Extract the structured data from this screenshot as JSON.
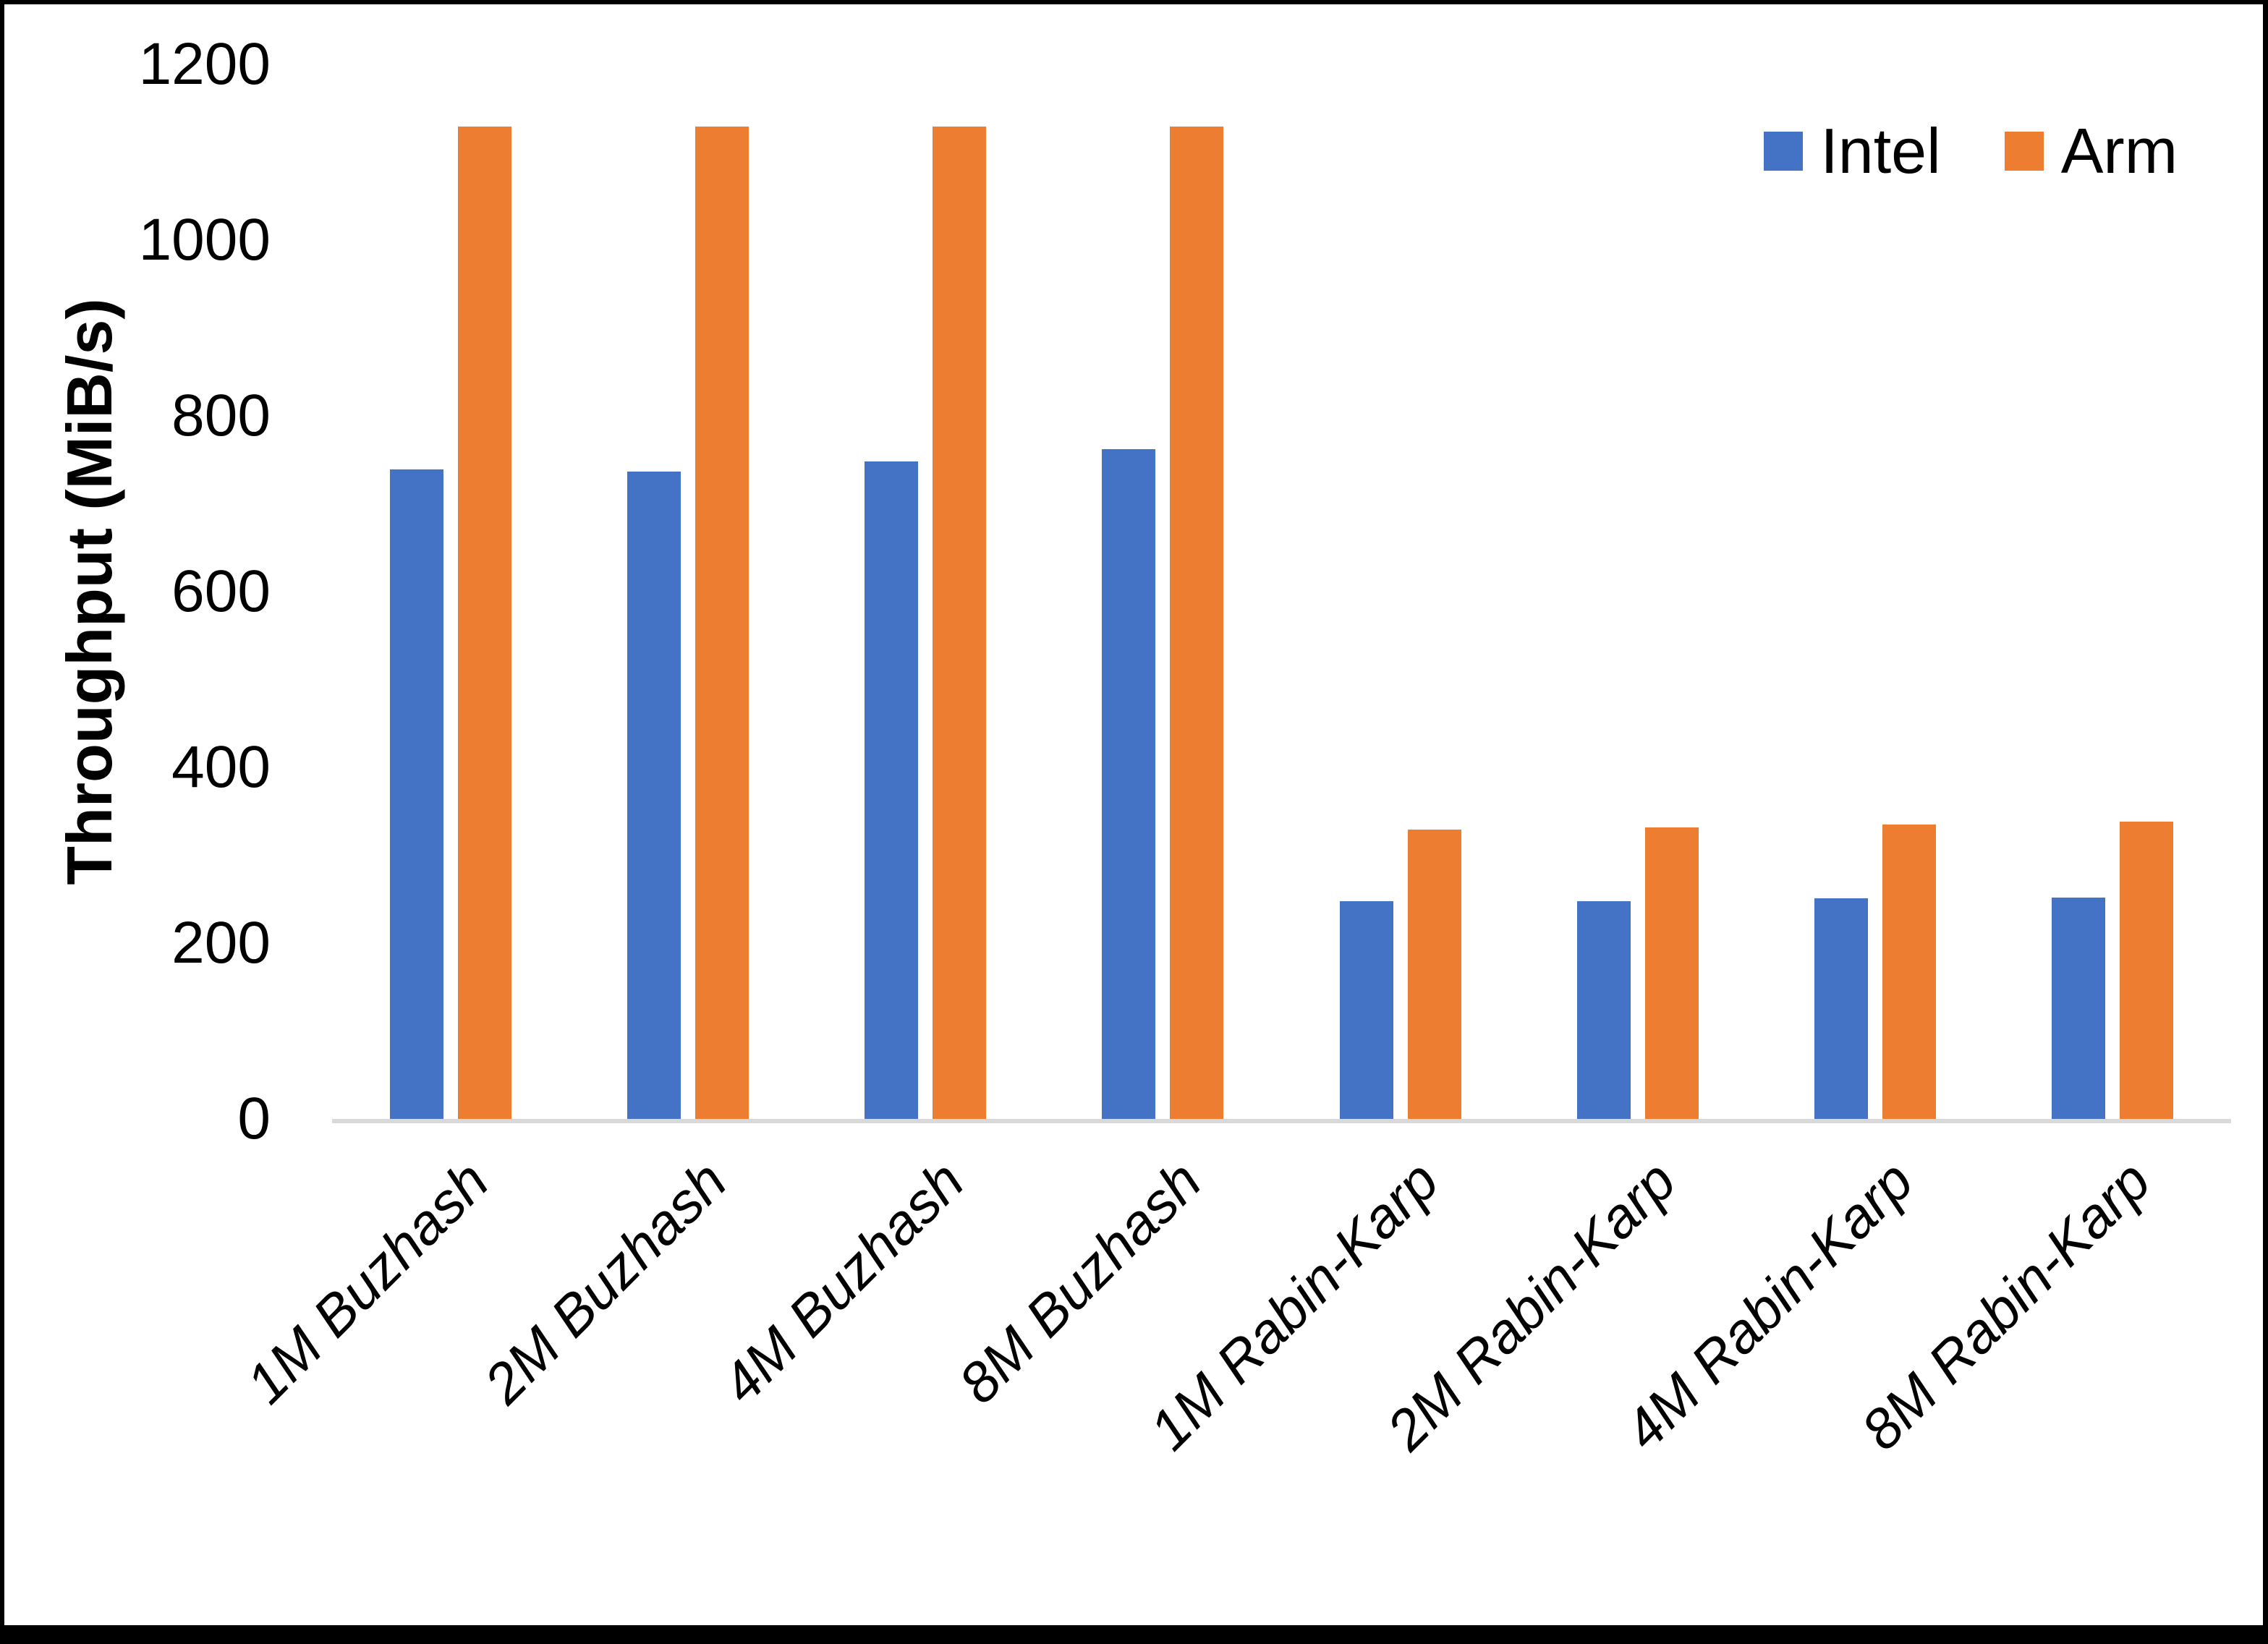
{
  "chart_data": {
    "type": "bar",
    "title": "",
    "xlabel": "",
    "ylabel": "Throughput (MiB/s)",
    "categories": [
      "1M Buzhash",
      "2M Buzhash",
      "4M Buzhash",
      "8M Buzhash",
      "1M Rabin-Karp",
      "2M Rabin-Karp",
      "4M Rabin-Karp",
      "8M Rabin-Karp"
    ],
    "series": [
      {
        "name": "Intel",
        "color": "#4472C4",
        "values": [
          739,
          737,
          748,
          762,
          248,
          248,
          251,
          252
        ]
      },
      {
        "name": "Arm",
        "color": "#ED7D31",
        "values": [
          1129,
          1129,
          1129,
          1129,
          329,
          332,
          335,
          338
        ]
      }
    ],
    "ylim": [
      0,
      1200
    ],
    "yticks": [
      0,
      200,
      400,
      600,
      800,
      1000,
      1200
    ],
    "grid": "off",
    "legend_position": "top-right",
    "axis_line_color": "#D9D9D9",
    "text_color": "#000000"
  }
}
